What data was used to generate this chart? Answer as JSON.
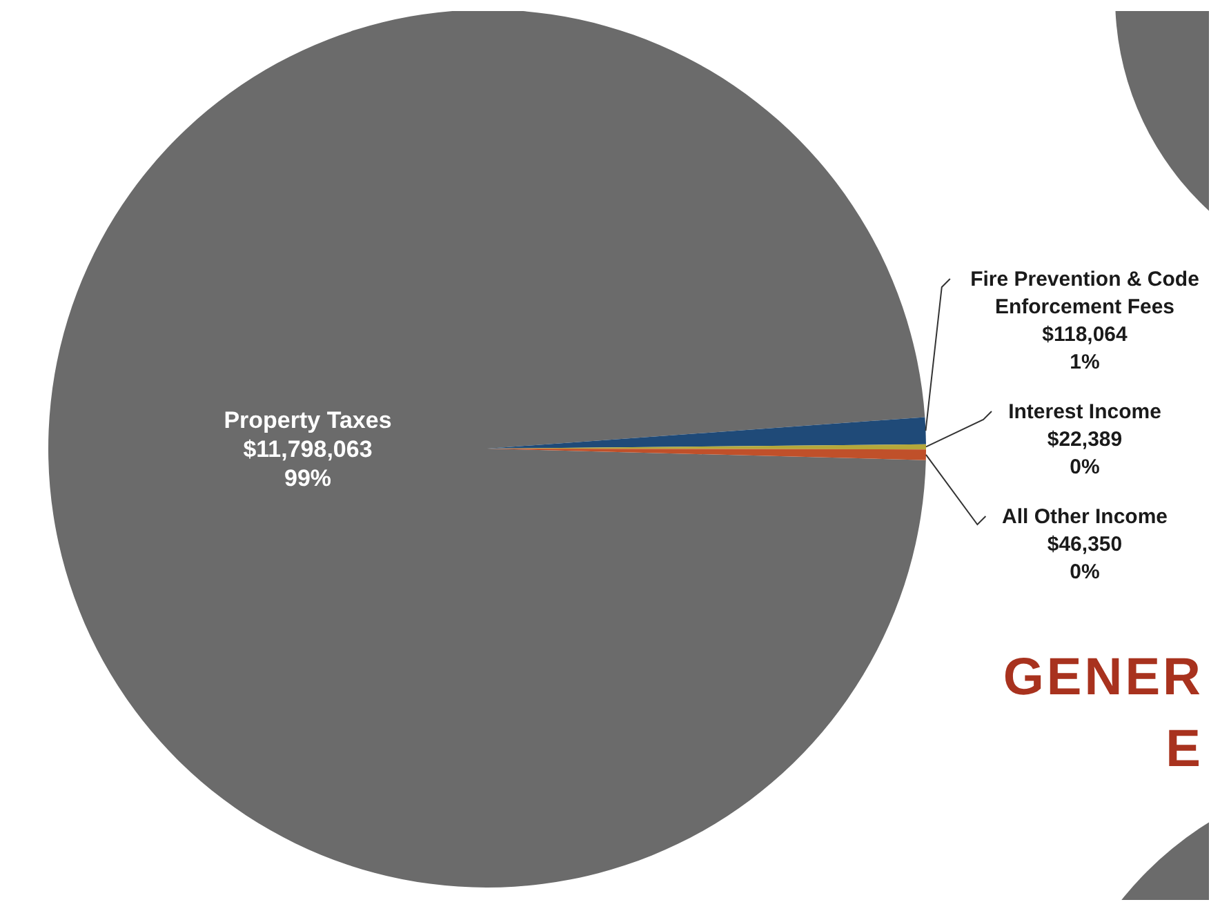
{
  "chart_data": {
    "type": "pie",
    "categories": [
      "Property Taxes",
      "Fire Prevention & Code Enforcement Fees",
      "Interest Income",
      "All Other Income"
    ],
    "values": [
      11798063,
      118064,
      22389,
      46350
    ],
    "colors": [
      "#6b6b6b",
      "#1f4a78",
      "#b5a83a",
      "#c0502a"
    ],
    "value_labels": [
      "$11,798,063\n99%",
      "$118,064\n1%",
      "$22,389\n0%",
      "$46,350\n0%"
    ],
    "annotations": [
      "GENER",
      "E"
    ]
  }
}
